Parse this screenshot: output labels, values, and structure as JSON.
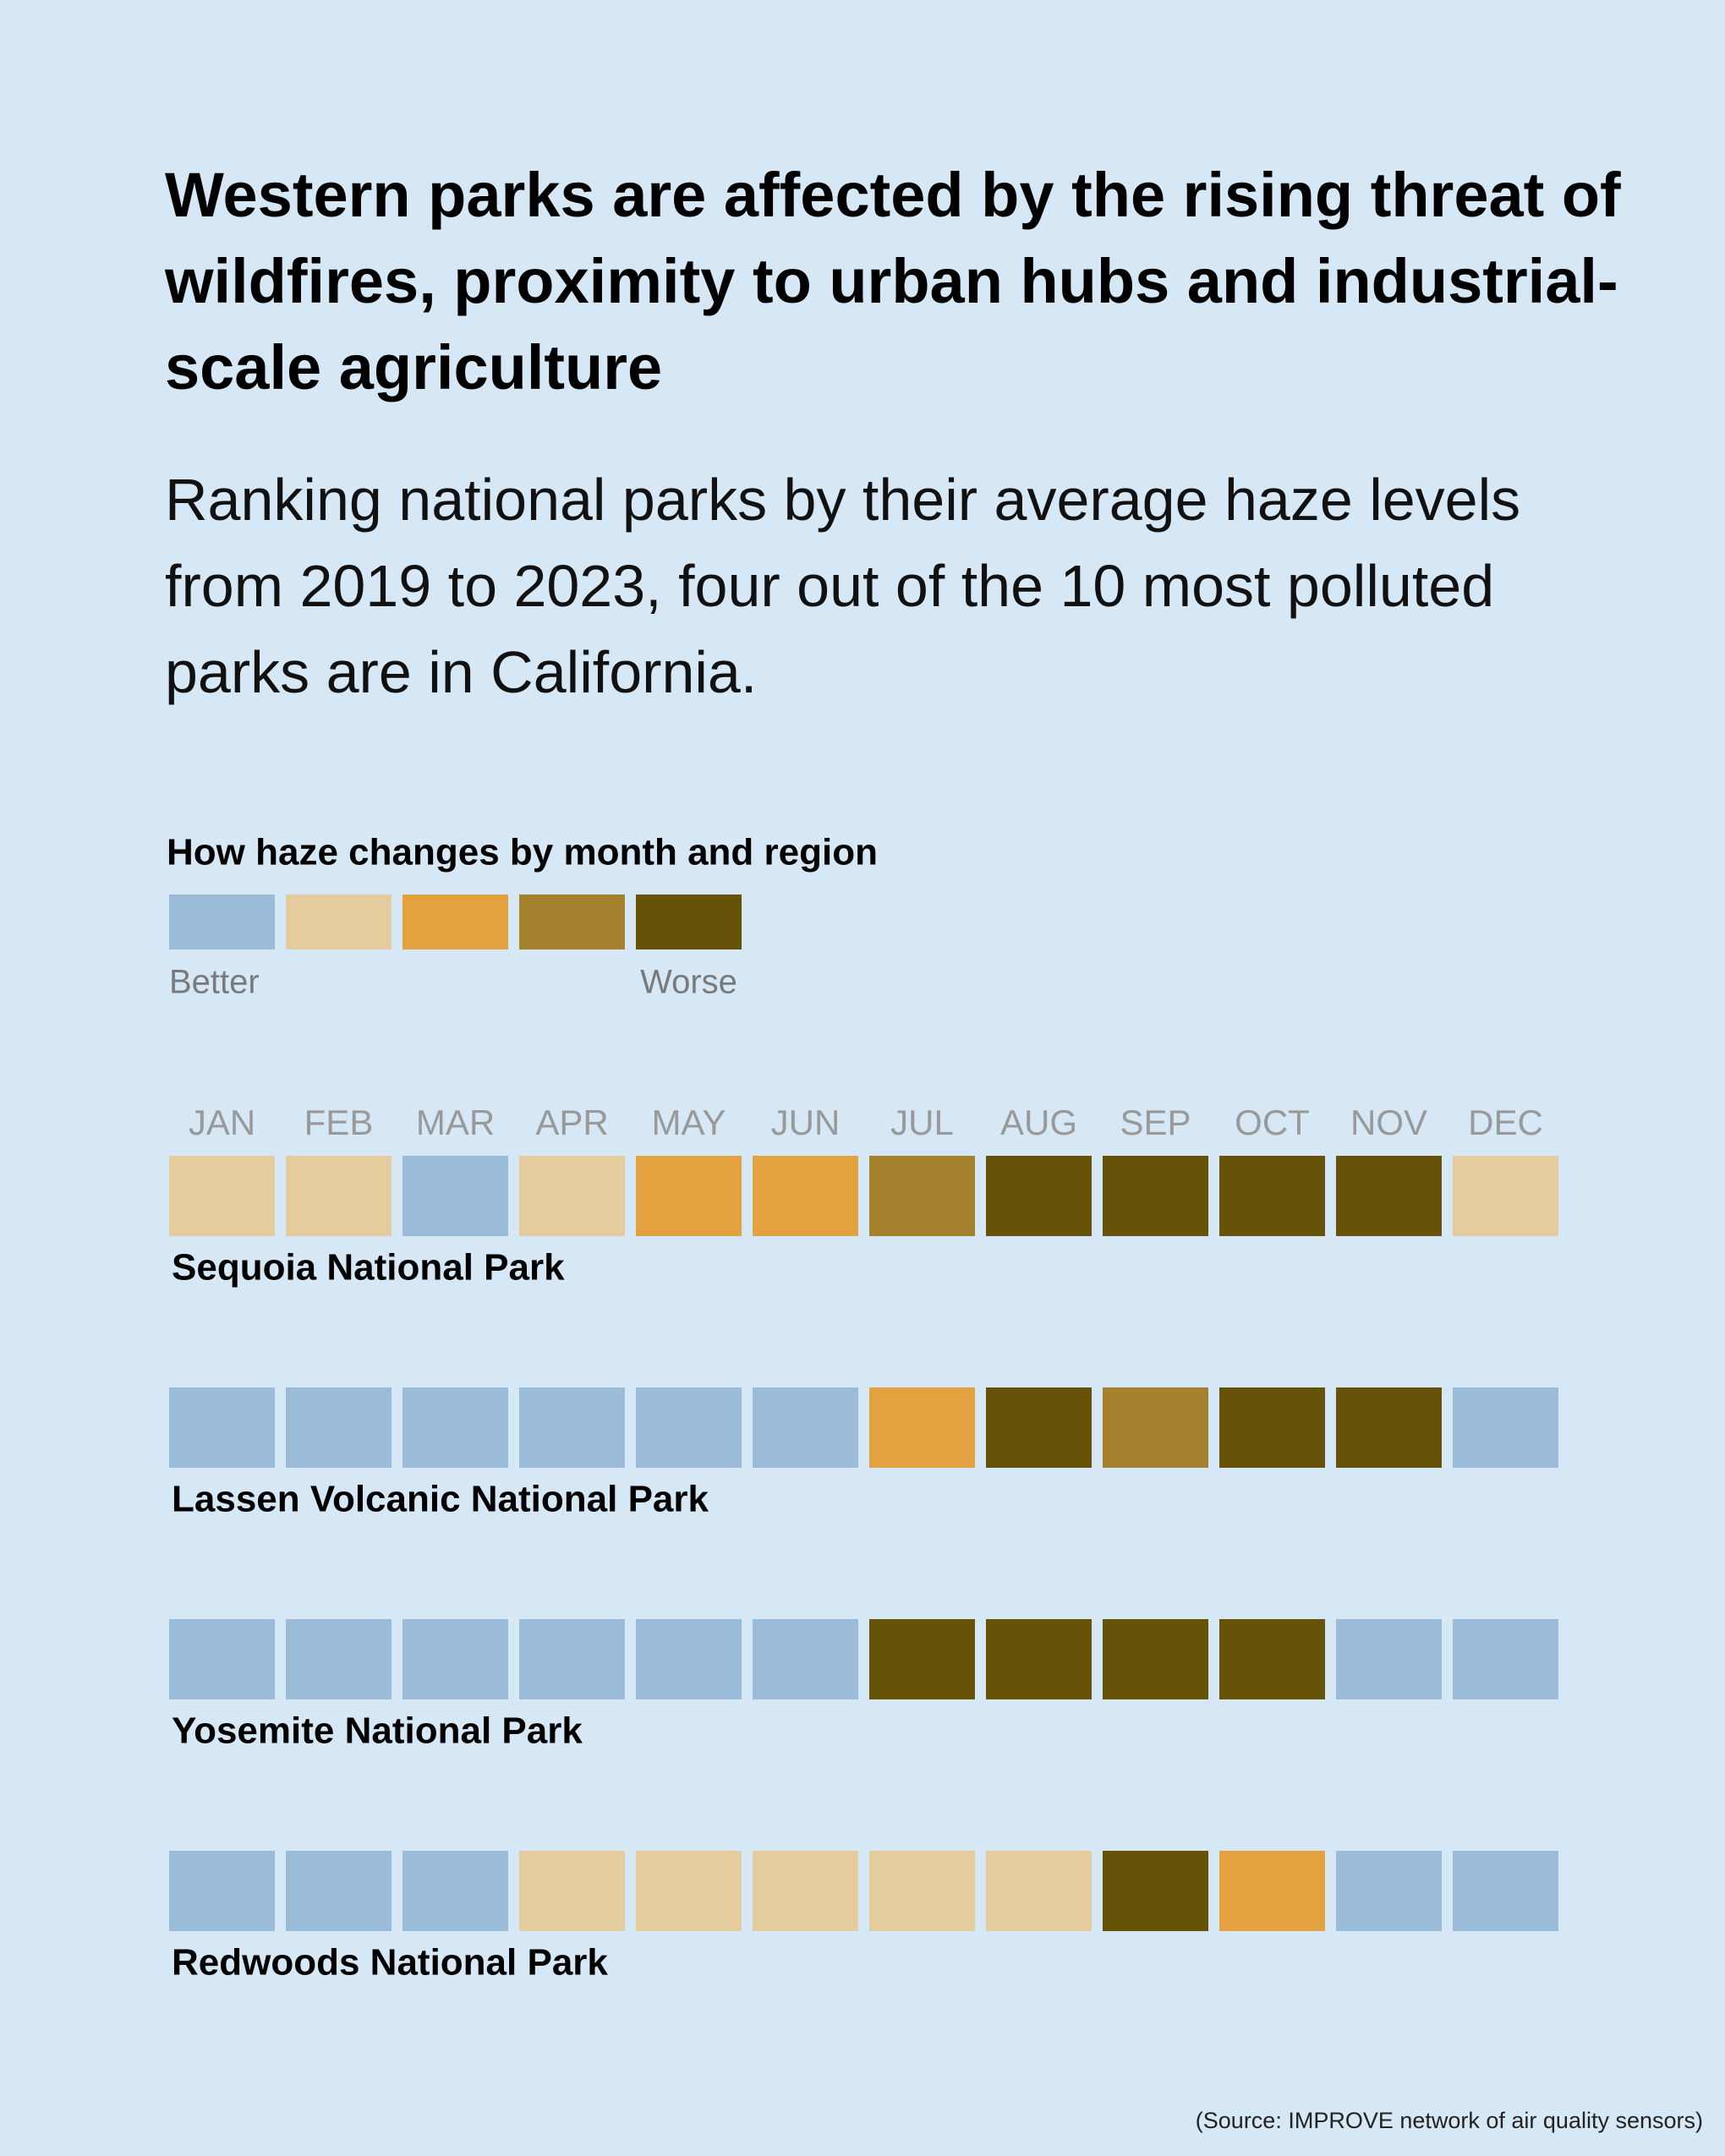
{
  "chart_data": {
    "type": "heatmap",
    "title": "Western parks are affected by the rising threat of wildfires, proximity to urban hubs and industrial-scale agriculture",
    "subtitle": "Ranking national parks by their average haze levels from 2019 to 2023, four out of the 10 most polluted parks are in California.",
    "legend_title": "How haze changes by month and region",
    "legend_low_label": "Better",
    "legend_high_label": "Worse",
    "levels": [
      1,
      2,
      3,
      4,
      5
    ],
    "colors": [
      "#9bbcd8",
      "#e5cc9e",
      "#e3a23f",
      "#a5812e",
      "#675308"
    ],
    "categories": [
      "JAN",
      "FEB",
      "MAR",
      "APR",
      "MAY",
      "JUN",
      "JUL",
      "AUG",
      "SEP",
      "OCT",
      "NOV",
      "DEC"
    ],
    "series": [
      {
        "name": "Sequoia National Park",
        "values": [
          2,
          2,
          1,
          2,
          3,
          3,
          4,
          5,
          5,
          5,
          5,
          2
        ]
      },
      {
        "name": "Lassen Volcanic National Park",
        "values": [
          1,
          1,
          1,
          1,
          1,
          1,
          3,
          5,
          4,
          5,
          5,
          1
        ]
      },
      {
        "name": "Yosemite National Park",
        "values": [
          1,
          1,
          1,
          1,
          1,
          1,
          5,
          5,
          5,
          5,
          1,
          1
        ]
      },
      {
        "name": "Redwoods National Park",
        "values": [
          1,
          1,
          1,
          2,
          2,
          2,
          2,
          2,
          5,
          3,
          1,
          1
        ]
      }
    ],
    "source": "(Source: IMPROVE network of air quality sensors)"
  }
}
